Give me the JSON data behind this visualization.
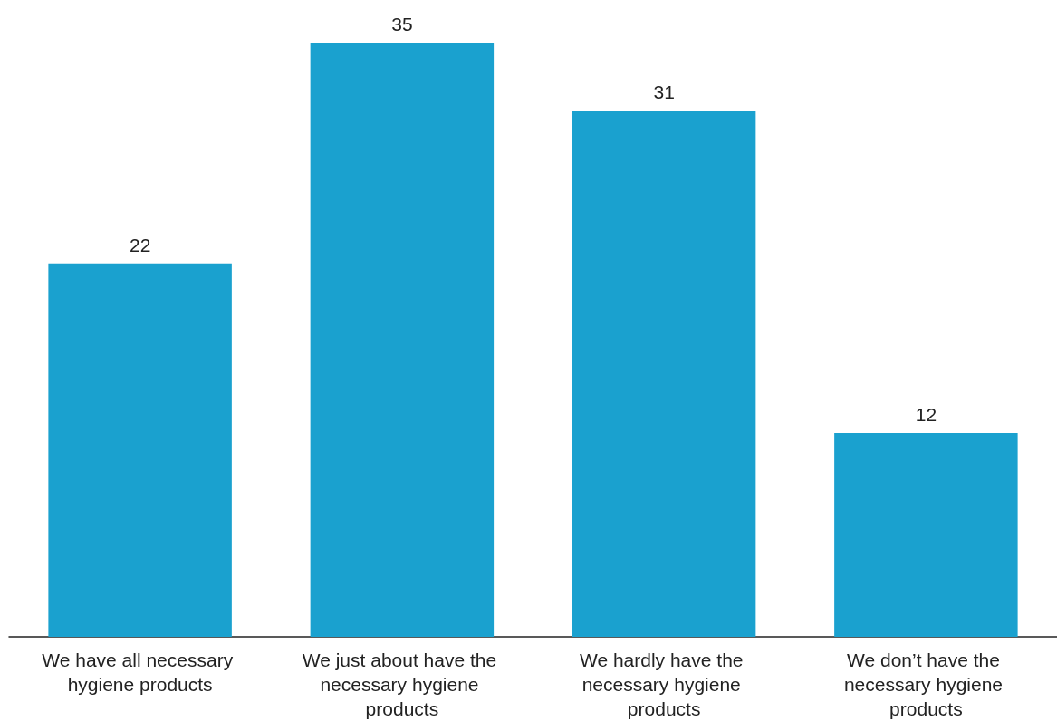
{
  "chart_data": {
    "type": "bar",
    "categories": [
      "We have all necessary hygiene products",
      "We just about have the necessary hygiene products",
      "We hardly have the necessary hygiene products",
      "We don’t have the necessary hygiene products"
    ],
    "values": [
      22,
      35,
      31,
      12
    ],
    "color": "#1aa1cf",
    "data_labels": true
  }
}
